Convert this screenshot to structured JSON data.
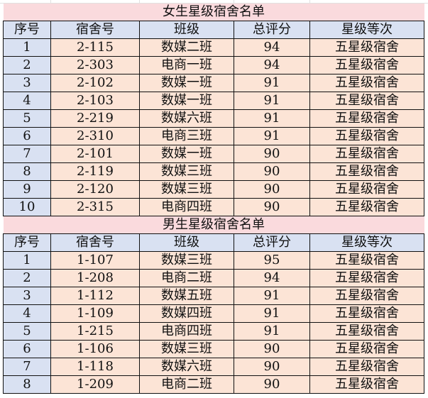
{
  "colors": {
    "title_bg": "#fadadd",
    "header_bg": "#d9e1f2",
    "cell_bg": "#fce4d6"
  },
  "headers": [
    "序号",
    "宿舍号",
    "班级",
    "总评分",
    "星级等次"
  ],
  "sections": [
    {
      "title": "女生星级宿舍名单",
      "rows": [
        [
          "1",
          "2-115",
          "数媒二班",
          "94",
          "五星级宿舍"
        ],
        [
          "2",
          "2-303",
          "电商一班",
          "94",
          "五星级宿舍"
        ],
        [
          "3",
          "2-102",
          "数媒一班",
          "91",
          "五星级宿舍"
        ],
        [
          "4",
          "2-103",
          "数媒一班",
          "91",
          "五星级宿舍"
        ],
        [
          "5",
          "2-219",
          "数媒六班",
          "91",
          "五星级宿舍"
        ],
        [
          "6",
          "2-310",
          "电商三班",
          "91",
          "五星级宿舍"
        ],
        [
          "7",
          "2-101",
          "数媒一班",
          "90",
          "五星级宿舍"
        ],
        [
          "8",
          "2-119",
          "数媒三班",
          "90",
          "五星级宿舍"
        ],
        [
          "9",
          "2-120",
          "数媒三班",
          "90",
          "五星级宿舍"
        ],
        [
          "10",
          "2-315",
          "电商四班",
          "90",
          "五星级宿舍"
        ]
      ]
    },
    {
      "title": "男生星级宿舍名单",
      "rows": [
        [
          "1",
          "1-107",
          "数媒三班",
          "95",
          "五星级宿舍"
        ],
        [
          "2",
          "1-208",
          "电商二班",
          "94",
          "五星级宿舍"
        ],
        [
          "3",
          "1-112",
          "数媒五班",
          "91",
          "五星级宿舍"
        ],
        [
          "4",
          "1-109",
          "数媒四班",
          "91",
          "五星级宿舍"
        ],
        [
          "5",
          "1-215",
          "电商四班",
          "91",
          "五星级宿舍"
        ],
        [
          "6",
          "1-106",
          "数媒三班",
          "90",
          "五星级宿舍"
        ],
        [
          "7",
          "1-118",
          "数媒六班",
          "90",
          "五星级宿舍"
        ],
        [
          "8",
          "1-209",
          "电商二班",
          "90",
          "五星级宿舍"
        ]
      ]
    }
  ]
}
